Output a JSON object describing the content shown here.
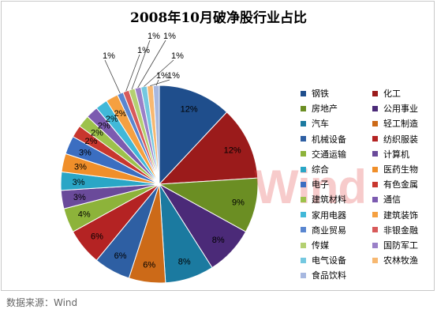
{
  "chart_data": {
    "type": "pie",
    "title": "2008年10月破净股行业占比",
    "categories": [
      "钢铁",
      "化工",
      "房地产",
      "公用事业",
      "汽车",
      "轻工制造",
      "机械设备",
      "纺织服装",
      "交通运输",
      "计算机",
      "综合",
      "医药生物",
      "电子",
      "有色金属",
      "建筑材料",
      "通信",
      "家用电器",
      "建筑装饰",
      "商业贸易",
      "非银金融",
      "传媒",
      "国防军工",
      "电气设备",
      "农林牧渔",
      "食品饮料"
    ],
    "values": [
      12,
      12,
      9,
      8,
      8,
      6,
      6,
      6,
      4,
      3,
      3,
      3,
      3,
      2,
      2,
      2,
      2,
      2,
      1,
      1,
      1,
      1,
      1,
      1,
      1
    ],
    "labels": [
      "12%",
      "12%",
      "9%",
      "8%",
      "8%",
      "6%",
      "6%",
      "6%",
      "4%",
      "3%",
      "3%",
      "3%",
      "3%",
      "2%",
      "2%",
      "2%",
      "2%",
      "2%",
      "1%",
      "1%",
      "1%",
      "1%",
      "1%",
      "1%",
      "1%"
    ],
    "colors": [
      "#1f4e8c",
      "#9b1b1b",
      "#6b8e23",
      "#4b2a78",
      "#1b7aa0",
      "#cc6a18",
      "#2e5fa3",
      "#b42323",
      "#8db33a",
      "#6a4a9a",
      "#2aa6c6",
      "#f08f2a",
      "#3b6ec1",
      "#c8372e",
      "#9dc24b",
      "#7c5bb0",
      "#41b8d8",
      "#f5a040",
      "#5a86d0",
      "#d85a5a",
      "#b4d071",
      "#9a80c8",
      "#74c8e0",
      "#f7b871",
      "#a7b8e0"
    ],
    "legend_position": "right"
  },
  "watermark": "Wind",
  "source_note": "数据来源：Wind"
}
